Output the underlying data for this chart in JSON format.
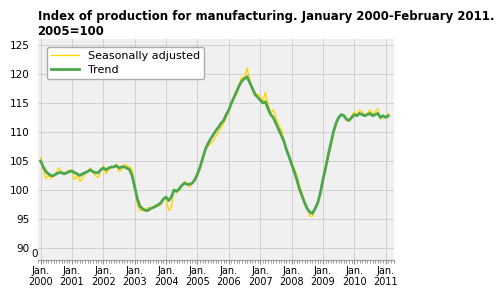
{
  "title": "Index of production for manufacturing. January 2000-February 2011.\n2005=100",
  "seasonally_adjusted": [
    105.5,
    103.5,
    102.0,
    102.5,
    102.0,
    102.5,
    103.0,
    103.8,
    103.2,
    102.8,
    103.0,
    103.5,
    103.2,
    101.8,
    102.5,
    101.5,
    102.0,
    102.8,
    103.2,
    103.8,
    103.0,
    102.5,
    102.2,
    103.5,
    104.2,
    102.8,
    103.5,
    103.8,
    104.0,
    104.5,
    103.2,
    103.5,
    104.5,
    104.2,
    104.0,
    103.5,
    100.5,
    97.5,
    96.5,
    96.5,
    96.5,
    97.0,
    96.8,
    97.0,
    97.5,
    97.2,
    97.5,
    98.5,
    98.5,
    96.5,
    97.0,
    100.2,
    99.5,
    100.0,
    100.8,
    101.5,
    101.2,
    100.5,
    101.2,
    101.8,
    102.5,
    103.5,
    105.5,
    107.0,
    107.5,
    108.0,
    108.5,
    109.2,
    110.0,
    110.8,
    111.5,
    112.5,
    113.5,
    115.0,
    115.8,
    116.5,
    118.2,
    119.5,
    119.2,
    121.0,
    119.0,
    117.5,
    116.2,
    116.5,
    116.2,
    115.2,
    116.8,
    114.8,
    113.2,
    113.8,
    112.5,
    111.2,
    110.5,
    108.8,
    107.2,
    106.2,
    104.8,
    103.8,
    102.5,
    100.8,
    99.5,
    98.0,
    96.8,
    95.5,
    95.5,
    97.0,
    97.8,
    99.5,
    102.0,
    103.5,
    105.5,
    107.5,
    109.5,
    111.2,
    112.5,
    113.0,
    113.0,
    112.0,
    111.8,
    112.8,
    113.5,
    112.8,
    113.8,
    113.5,
    112.8,
    113.2,
    113.8,
    113.0,
    113.5,
    114.0,
    112.2,
    112.8,
    112.5,
    113.2
  ],
  "trend": [
    105.0,
    104.0,
    103.2,
    102.8,
    102.5,
    102.5,
    102.8,
    103.0,
    103.0,
    102.8,
    103.0,
    103.2,
    103.3,
    103.0,
    102.8,
    102.5,
    102.8,
    103.0,
    103.2,
    103.5,
    103.2,
    103.0,
    103.0,
    103.5,
    103.8,
    103.5,
    103.8,
    104.0,
    104.0,
    104.2,
    103.8,
    104.0,
    104.0,
    103.8,
    103.5,
    102.5,
    100.5,
    98.5,
    97.2,
    96.8,
    96.5,
    96.5,
    96.8,
    97.0,
    97.2,
    97.5,
    97.8,
    98.5,
    98.8,
    98.2,
    98.8,
    100.0,
    99.8,
    100.2,
    100.8,
    101.2,
    101.0,
    101.0,
    101.2,
    101.8,
    102.8,
    104.0,
    105.5,
    107.0,
    108.0,
    108.8,
    109.5,
    110.2,
    110.8,
    111.5,
    112.0,
    113.0,
    113.8,
    115.0,
    116.0,
    117.0,
    118.0,
    118.8,
    119.2,
    119.5,
    118.5,
    117.5,
    116.5,
    116.0,
    115.5,
    115.0,
    115.2,
    114.0,
    113.0,
    112.5,
    111.5,
    110.5,
    109.5,
    108.5,
    107.0,
    105.8,
    104.5,
    103.2,
    101.8,
    100.2,
    99.0,
    97.8,
    96.8,
    96.2,
    96.0,
    96.8,
    97.8,
    99.5,
    101.8,
    103.8,
    106.0,
    108.0,
    110.0,
    111.5,
    112.5,
    113.0,
    112.8,
    112.2,
    112.0,
    112.5,
    113.0,
    112.8,
    113.2,
    113.0,
    112.8,
    113.0,
    113.2,
    112.8,
    113.0,
    113.2,
    112.5,
    112.8,
    112.5,
    112.8
  ],
  "ylim": [
    88,
    126
  ],
  "yticks": [
    90,
    95,
    100,
    105,
    110,
    115,
    120,
    125
  ],
  "xlim_start": 2000.0,
  "xlim_end": 2011.25,
  "sa_color": "#FFD700",
  "trend_color": "#4CA64C",
  "sa_label": "Seasonally adjusted",
  "trend_label": "Trend",
  "title_fontsize": 8.5,
  "legend_fontsize": 8,
  "bg_color": "#f0f0f0"
}
